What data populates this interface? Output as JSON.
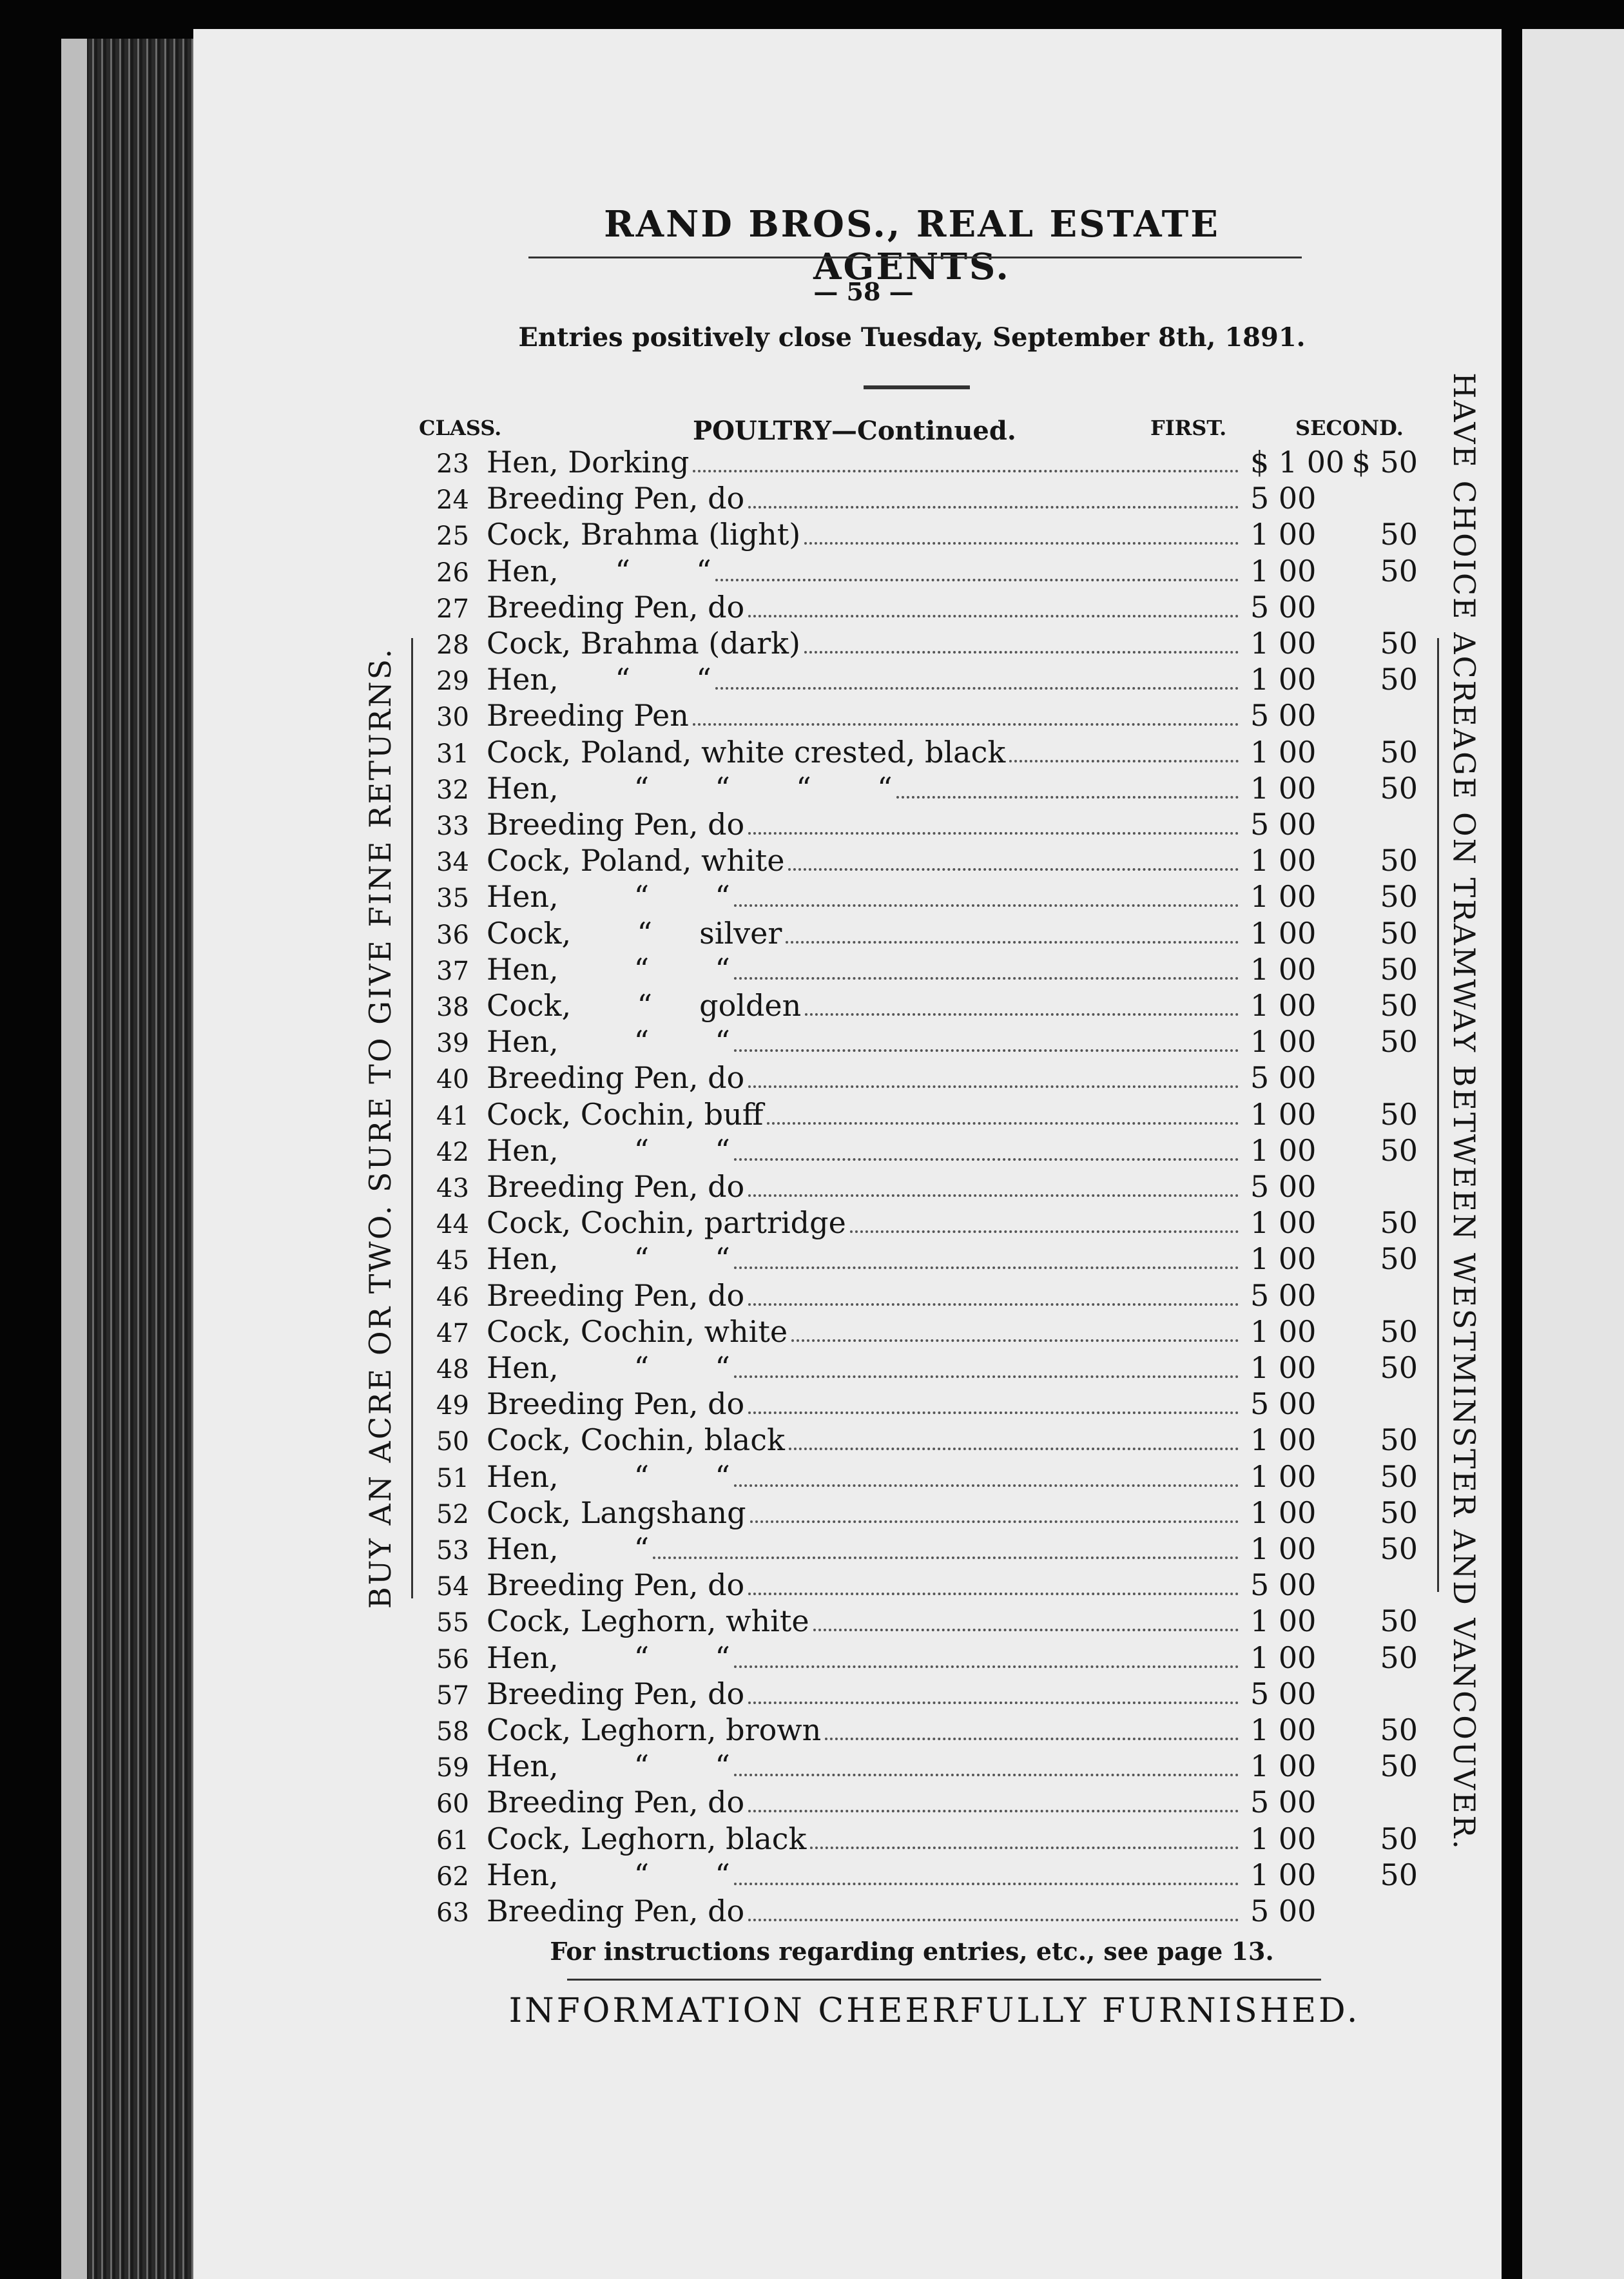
{
  "header": {
    "title": "RAND BROS., REAL ESTATE AGENTS.",
    "page_number": "— 58 —",
    "notice": "Entries positively close Tuesday, September 8th, 1891."
  },
  "table": {
    "col_class": "CLASS.",
    "col_section": "POULTRY—Continued.",
    "col_first": "FIRST.",
    "col_second": "SECOND.",
    "rows": [
      [
        "23",
        "Hen, Dorking",
        "$ 1 00",
        "$ 50"
      ],
      [
        "24",
        "Breeding Pen, do",
        "5 00",
        ""
      ],
      [
        "25",
        "Cock, Brahma (light)",
        "1 00",
        "50"
      ],
      [
        "26",
        "Hen,      “       “",
        "1 00",
        "50"
      ],
      [
        "27",
        "Breeding Pen, do",
        "5 00",
        ""
      ],
      [
        "28",
        "Cock, Brahma (dark)",
        "1 00",
        "50"
      ],
      [
        "29",
        "Hen,      “       “",
        "1 00",
        "50"
      ],
      [
        "30",
        "Breeding Pen",
        "5 00",
        ""
      ],
      [
        "31",
        "Cock, Poland, white crested, black",
        "1 00",
        "50"
      ],
      [
        "32",
        "Hen,        “       “       “       “",
        "1 00",
        "50"
      ],
      [
        "33",
        "Breeding Pen, do",
        "5 00",
        ""
      ],
      [
        "34",
        "Cock, Poland, white",
        "1 00",
        "50"
      ],
      [
        "35",
        "Hen,        “       “",
        "1 00",
        "50"
      ],
      [
        "36",
        "Cock,       “     silver",
        "1 00",
        "50"
      ],
      [
        "37",
        "Hen,        “       “",
        "1 00",
        "50"
      ],
      [
        "38",
        "Cock,       “     golden",
        "1 00",
        "50"
      ],
      [
        "39",
        "Hen,        “       “",
        "1 00",
        "50"
      ],
      [
        "40",
        "Breeding Pen, do",
        "5 00",
        ""
      ],
      [
        "41",
        "Cock, Cochin, buff",
        "1 00",
        "50"
      ],
      [
        "42",
        "Hen,        “       “",
        "1 00",
        "50"
      ],
      [
        "43",
        "Breeding Pen, do",
        "5 00",
        ""
      ],
      [
        "44",
        "Cock, Cochin, partridge",
        "1 00",
        "50"
      ],
      [
        "45",
        "Hen,        “       “",
        "1 00",
        "50"
      ],
      [
        "46",
        "Breeding Pen, do",
        "5 00",
        ""
      ],
      [
        "47",
        "Cock, Cochin, white",
        "1 00",
        "50"
      ],
      [
        "48",
        "Hen,        “       “",
        "1 00",
        "50"
      ],
      [
        "49",
        "Breeding Pen, do",
        "5 00",
        ""
      ],
      [
        "50",
        "Cock, Cochin, black",
        "1 00",
        "50"
      ],
      [
        "51",
        "Hen,        “       “",
        "1 00",
        "50"
      ],
      [
        "52",
        "Cock, Langshang",
        "1 00",
        "50"
      ],
      [
        "53",
        "Hen,        “",
        "1 00",
        "50"
      ],
      [
        "54",
        "Breeding Pen, do",
        "5 00",
        ""
      ],
      [
        "55",
        "Cock, Leghorn, white",
        "1 00",
        "50"
      ],
      [
        "56",
        "Hen,        “       “",
        "1 00",
        "50"
      ],
      [
        "57",
        "Breeding Pen, do",
        "5 00",
        ""
      ],
      [
        "58",
        "Cock, Leghorn, brown",
        "1 00",
        "50"
      ],
      [
        "59",
        "Hen,        “       “",
        "1 00",
        "50"
      ],
      [
        "60",
        "Breeding Pen, do",
        "5 00",
        ""
      ],
      [
        "61",
        "Cock, Leghorn, black",
        "1 00",
        "50"
      ],
      [
        "62",
        "Hen,        “       “",
        "1 00",
        "50"
      ],
      [
        "63",
        "Breeding Pen, do",
        "5 00",
        ""
      ]
    ]
  },
  "side_left": "BUY AN ACRE OR TWO.   SURE TO GIVE FINE RETURNS.",
  "side_right": "HAVE CHOICE ACREAGE ON TRAMWAY BETWEEN WESTMINSTER AND VANCOUVER.",
  "footnote": "For instructions regarding entries, etc., see page 13.",
  "footer": "INFORMATION CHEERFULLY FURNISHED."
}
